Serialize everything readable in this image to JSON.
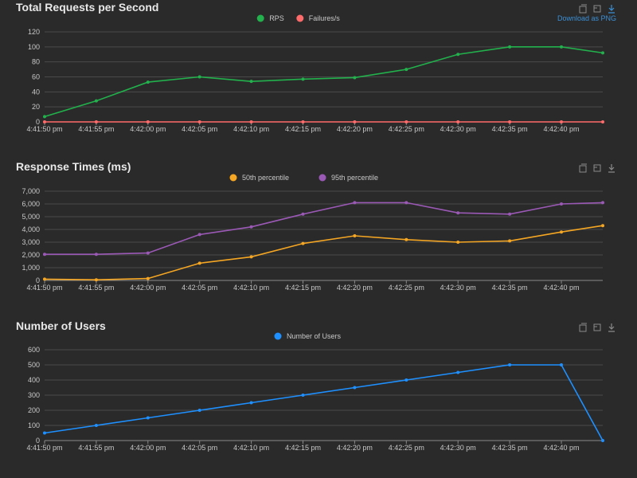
{
  "download_label": "Download as PNG",
  "colors": {
    "grid": "#4a4a4a",
    "axis_text": "#c8c8c8",
    "rps": "#22b14c",
    "failures": "#ff6b6b",
    "p50": "#f5a623",
    "p95": "#9b59b6",
    "users": "#1e90ff"
  },
  "icons": [
    "restore-icon",
    "zoom-icon",
    "download-icon"
  ],
  "chart_data": [
    {
      "type": "line",
      "title": "Total Requests per Second",
      "x": [
        "4:41:50 pm",
        "4:41:55 pm",
        "4:42:00 pm",
        "4:42:05 pm",
        "4:42:10 pm",
        "4:42:15 pm",
        "4:42:20 pm",
        "4:42:25 pm",
        "4:42:30 pm",
        "4:42:35 pm",
        "4:42:40 pm",
        "4:42:43 pm"
      ],
      "x_ticks": [
        "4:41:50 pm",
        "4:41:55 pm",
        "4:42:00 pm",
        "4:42:05 pm",
        "4:42:10 pm",
        "4:42:15 pm",
        "4:42:20 pm",
        "4:42:25 pm",
        "4:42:30 pm",
        "4:42:35 pm",
        "4:42:40 pm"
      ],
      "ylim": [
        0,
        120
      ],
      "yticks": [
        "0",
        "20",
        "40",
        "60",
        "80",
        "100",
        "120"
      ],
      "grid": true,
      "legend_position": "top-center",
      "series": [
        {
          "name": "RPS",
          "values": [
            7,
            28,
            53,
            60,
            54,
            57,
            59,
            70,
            90,
            100,
            100,
            92
          ]
        },
        {
          "name": "Failures/s",
          "values": [
            0,
            0,
            0,
            0,
            0,
            0,
            0,
            0,
            0,
            0,
            0,
            0
          ]
        }
      ]
    },
    {
      "type": "line",
      "title": "Response Times (ms)",
      "x": [
        "4:41:50 pm",
        "4:41:55 pm",
        "4:42:00 pm",
        "4:42:05 pm",
        "4:42:10 pm",
        "4:42:15 pm",
        "4:42:20 pm",
        "4:42:25 pm",
        "4:42:30 pm",
        "4:42:35 pm",
        "4:42:40 pm",
        "4:42:43 pm"
      ],
      "x_ticks": [
        "4:41:50 pm",
        "4:41:55 pm",
        "4:42:00 pm",
        "4:42:05 pm",
        "4:42:10 pm",
        "4:42:15 pm",
        "4:42:20 pm",
        "4:42:25 pm",
        "4:42:30 pm",
        "4:42:35 pm",
        "4:42:40 pm"
      ],
      "ylim": [
        0,
        7000
      ],
      "yticks": [
        "0",
        "1,000",
        "2,000",
        "3,000",
        "4,000",
        "5,000",
        "6,000",
        "7,000"
      ],
      "grid": true,
      "legend_position": "top-center",
      "series": [
        {
          "name": "50th percentile",
          "values": [
            100,
            50,
            150,
            1350,
            1850,
            2900,
            3500,
            3200,
            3000,
            3100,
            3800,
            4300
          ]
        },
        {
          "name": "95th percentile",
          "values": [
            2050,
            2050,
            2150,
            3600,
            4200,
            5200,
            6100,
            6100,
            5300,
            5200,
            6000,
            6100
          ]
        }
      ]
    },
    {
      "type": "line",
      "title": "Number of Users",
      "x": [
        "4:41:50 pm",
        "4:41:55 pm",
        "4:42:00 pm",
        "4:42:05 pm",
        "4:42:10 pm",
        "4:42:15 pm",
        "4:42:20 pm",
        "4:42:25 pm",
        "4:42:30 pm",
        "4:42:35 pm",
        "4:42:40 pm",
        "4:42:43 pm"
      ],
      "x_ticks": [
        "4:41:50 pm",
        "4:41:55 pm",
        "4:42:00 pm",
        "4:42:05 pm",
        "4:42:10 pm",
        "4:42:15 pm",
        "4:42:20 pm",
        "4:42:25 pm",
        "4:42:30 pm",
        "4:42:35 pm",
        "4:42:40 pm"
      ],
      "ylim": [
        0,
        600
      ],
      "yticks": [
        "0",
        "100",
        "200",
        "300",
        "400",
        "500",
        "600"
      ],
      "grid": true,
      "legend_position": "top-center",
      "series": [
        {
          "name": "Number of Users",
          "values": [
            50,
            100,
            150,
            200,
            250,
            300,
            350,
            400,
            450,
            500,
            500,
            0
          ]
        }
      ]
    }
  ]
}
